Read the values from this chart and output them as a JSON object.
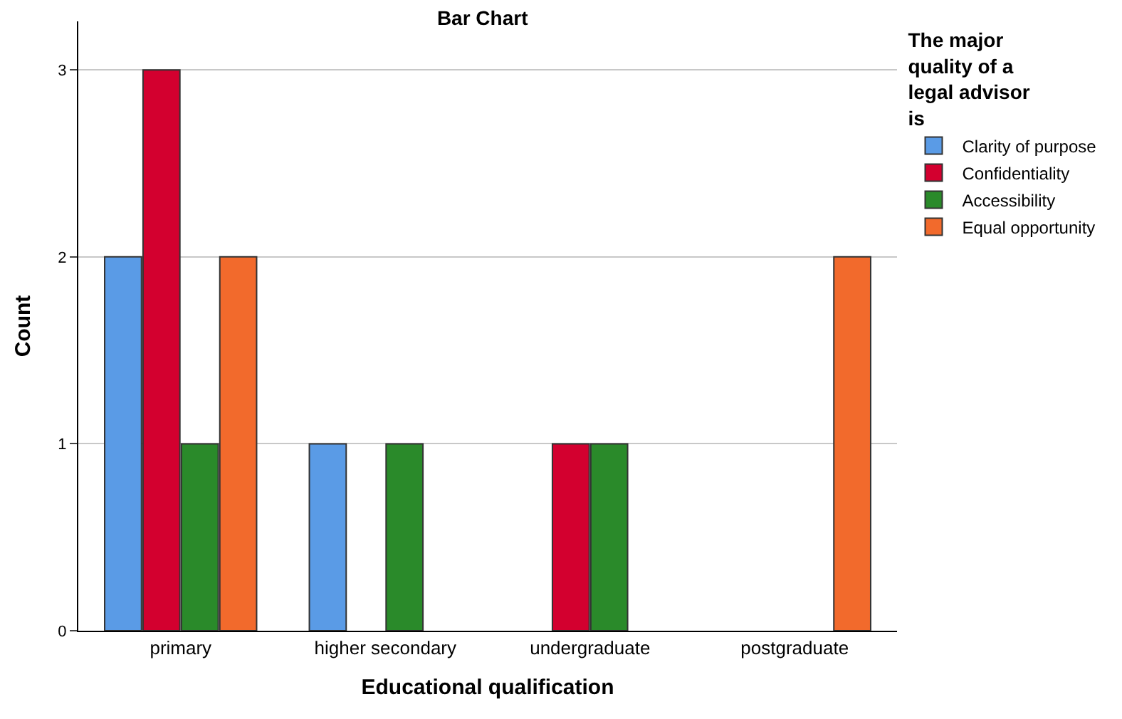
{
  "chart_data": {
    "type": "bar",
    "title": "Bar Chart",
    "xlabel": "Educational qualification",
    "ylabel": "Count",
    "legend_title": "The major quality of a legal advisor is",
    "categories": [
      "primary",
      "higher secondary",
      "undergraduate",
      "postgraduate"
    ],
    "series": [
      {
        "name": "Clarity of purpose",
        "color": "#5a9be6",
        "values": [
          2,
          1,
          null,
          null
        ]
      },
      {
        "name": "Confidentiality",
        "color": "#d3002f",
        "values": [
          3,
          null,
          1,
          null
        ]
      },
      {
        "name": "Accessibility",
        "color": "#2a8a2a",
        "values": [
          1,
          1,
          1,
          null
        ]
      },
      {
        "name": "Equal opportunity",
        "color": "#f26a2c",
        "values": [
          2,
          null,
          null,
          2
        ]
      }
    ],
    "ylim": [
      0,
      3.26
    ],
    "yticks": [
      0,
      1,
      2,
      3
    ],
    "grid": "y",
    "legend": "top right"
  }
}
